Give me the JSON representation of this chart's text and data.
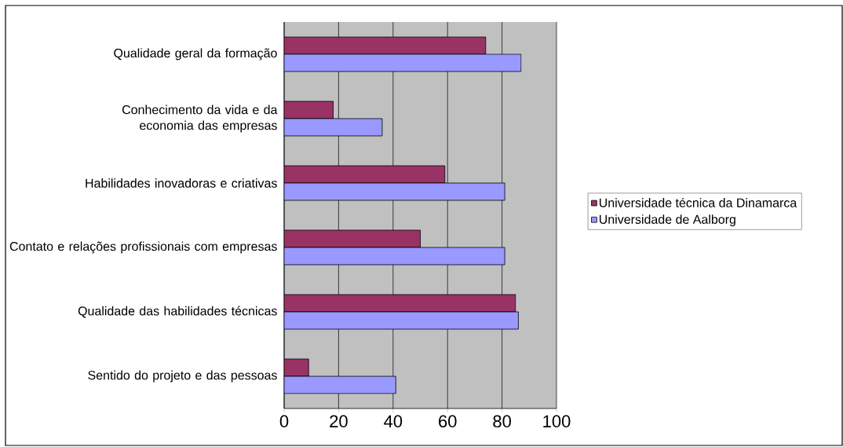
{
  "chart_data": {
    "type": "bar",
    "orientation": "horizontal",
    "categories": [
      "Qualidade geral da formação",
      "Conhecimento da vida e da economia das empresas",
      "Habilidades inovadoras e criativas",
      "Contato e relações profissionais com empresas",
      "Qualidade das habilidades técnicas",
      "Sentido do projeto e das pessoas"
    ],
    "series": [
      {
        "name": "Universidade técnica da Dinamarca",
        "color": "#993366",
        "values": [
          74,
          18,
          59,
          50,
          85,
          9
        ]
      },
      {
        "name": "Universidade de Aalborg",
        "color": "#9999ff",
        "values": [
          87,
          36,
          81,
          81,
          86,
          41
        ]
      }
    ],
    "xlim": [
      0,
      100
    ],
    "xticks": [
      0,
      20,
      40,
      60,
      80,
      100
    ],
    "grid": "x",
    "legend": "right"
  }
}
